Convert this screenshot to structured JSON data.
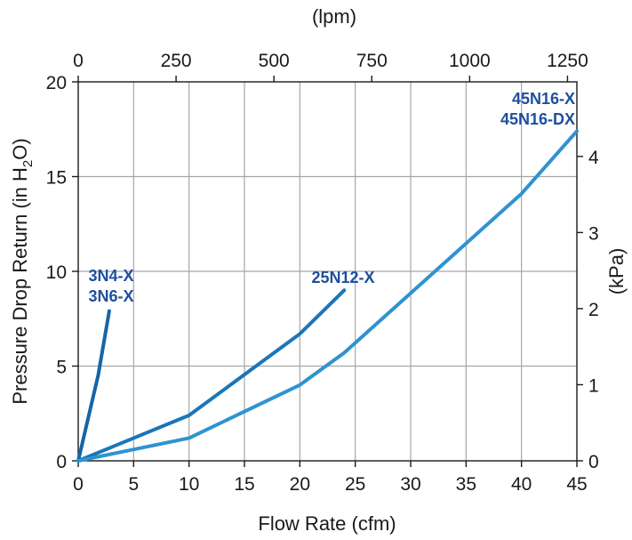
{
  "chart_data": {
    "type": "line",
    "xlabel": "Flow Rate  (cfm)",
    "ylabel_main": "Pressure Drop Return  (in H",
    "ylabel_sub": "2",
    "ylabel_end": "O)",
    "x2label": "(lpm)",
    "y2label": "(kPa)",
    "xlim": [
      0,
      45
    ],
    "ylim": [
      0,
      20
    ],
    "x2lim": [
      0,
      1274
    ],
    "y2lim": [
      0,
      4.98
    ],
    "x_ticks": [
      "0",
      "5",
      "10",
      "15",
      "20",
      "25",
      "30",
      "35",
      "40",
      "45"
    ],
    "y_ticks": [
      "0",
      "5",
      "10",
      "15",
      "20"
    ],
    "x2_ticks": [
      "0",
      "250",
      "500",
      "750",
      "1000",
      "1250"
    ],
    "y2_ticks": [
      "0",
      "1",
      "2",
      "3",
      "4"
    ],
    "x_tick_values": [
      0,
      5,
      10,
      15,
      20,
      25,
      30,
      35,
      40,
      45
    ],
    "y_tick_values": [
      0,
      5,
      10,
      15,
      20
    ],
    "x2_tick_values": [
      0,
      250,
      500,
      750,
      1000,
      1250
    ],
    "y2_tick_values": [
      0,
      1,
      2,
      3,
      4
    ],
    "grid": true,
    "series": [
      {
        "labels": [
          "3N4-X",
          "3N6-X"
        ],
        "color": "#1565a8",
        "x": [
          0,
          1.8,
          2.8
        ],
        "y": [
          0,
          4.5,
          7.9
        ]
      },
      {
        "labels": [
          "25N12-X"
        ],
        "color": "#1a76b8",
        "x": [
          0,
          10,
          20,
          24
        ],
        "y": [
          0,
          2.4,
          6.7,
          9.0
        ]
      },
      {
        "labels": [
          "45N16-X",
          "45N16-DX"
        ],
        "color": "#2f93d0",
        "x": [
          0,
          10,
          20,
          24,
          40,
          45
        ],
        "y": [
          0,
          1.2,
          4.0,
          5.7,
          14.1,
          17.4
        ]
      }
    ],
    "label_color": "#1f4f9e"
  }
}
